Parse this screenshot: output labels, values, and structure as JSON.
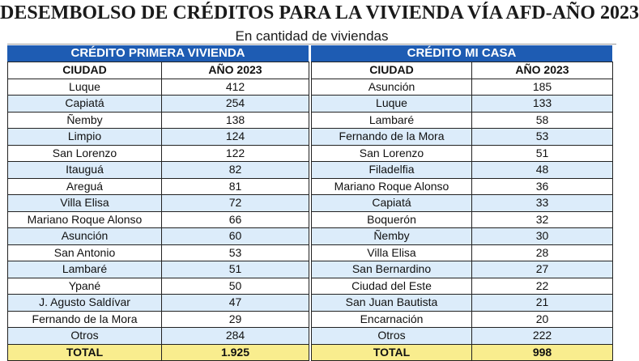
{
  "title": "DESEMBOLSO DE CRÉDITOS PARA LA VIVIENDA VÍA AFD-AÑO 2023",
  "subtitle": "En cantidad de viviendas",
  "columns": {
    "city": "CIUDAD",
    "year": "AÑO 2023"
  },
  "left": {
    "heading": "CRÉDITO PRIMERA VIVIENDA",
    "rows": [
      {
        "city": "Luque",
        "value": "412"
      },
      {
        "city": "Capiatá",
        "value": "254"
      },
      {
        "city": "Ñemby",
        "value": "138"
      },
      {
        "city": "Limpio",
        "value": "124"
      },
      {
        "city": "San Lorenzo",
        "value": "122"
      },
      {
        "city": "Itauguá",
        "value": "82"
      },
      {
        "city": "Areguá",
        "value": "81"
      },
      {
        "city": "Villa Elisa",
        "value": "72"
      },
      {
        "city": "Mariano Roque Alonso",
        "value": "66"
      },
      {
        "city": "Asunción",
        "value": "60"
      },
      {
        "city": "San Antonio",
        "value": "53"
      },
      {
        "city": "Lambaré",
        "value": "51"
      },
      {
        "city": "Ypané",
        "value": "50"
      },
      {
        "city": "J. Agusto Saldívar",
        "value": "47"
      },
      {
        "city": "Fernando de la Mora",
        "value": "29"
      },
      {
        "city": "Otros",
        "value": "284"
      }
    ],
    "total": {
      "label": "TOTAL",
      "value": "1.925"
    }
  },
  "right": {
    "heading": "CRÉDITO MI CASA",
    "rows": [
      {
        "city": "Asunción",
        "value": "185"
      },
      {
        "city": "Luque",
        "value": "133"
      },
      {
        "city": "Lambaré",
        "value": "58"
      },
      {
        "city": "Fernando de la Mora",
        "value": "53"
      },
      {
        "city": "San Lorenzo",
        "value": "51"
      },
      {
        "city": "Filadelfia",
        "value": "48"
      },
      {
        "city": "Mariano Roque Alonso",
        "value": "36"
      },
      {
        "city": "Capiatá",
        "value": "33"
      },
      {
        "city": "Boquerón",
        "value": "32"
      },
      {
        "city": "Ñemby",
        "value": "30"
      },
      {
        "city": "Villa Elisa",
        "value": "28"
      },
      {
        "city": "San Bernardino",
        "value": "27"
      },
      {
        "city": "Ciudad del Este",
        "value": "22"
      },
      {
        "city": "San Juan Bautista",
        "value": "21"
      },
      {
        "city": "Encarnación",
        "value": "20"
      },
      {
        "city": "Otros",
        "value": "222"
      }
    ],
    "total": {
      "label": "TOTAL",
      "value": "998"
    }
  },
  "colors": {
    "band": "#1e5cb3",
    "stripe": "#dcecfa",
    "total": "#f9ed8e"
  }
}
